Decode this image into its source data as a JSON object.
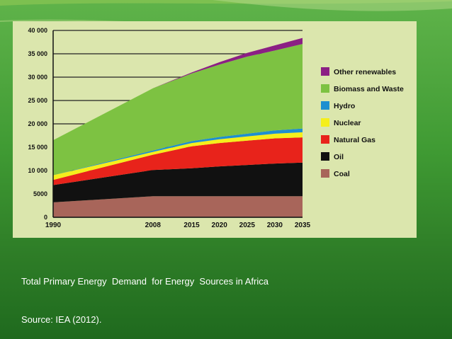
{
  "caption": {
    "line1": "Total Primary Energy  Demand  for Energy  Sources in Africa",
    "line2": "Source: IEA (2012)."
  },
  "colors": {
    "background_green": "#3f9a33",
    "panel": "#dbe6ad"
  },
  "chart_data": {
    "type": "area",
    "stacked": true,
    "title": "",
    "xlabel": "",
    "ylabel": "",
    "x": [
      1990,
      2008,
      2015,
      2020,
      2025,
      2030,
      2035
    ],
    "x_tick_labels": [
      "1990",
      "2008",
      "2015",
      "2020",
      "2025",
      "2030",
      "2035"
    ],
    "ylim": [
      0,
      40000
    ],
    "y_ticks": [
      0,
      5000,
      10000,
      15000,
      20000,
      25000,
      30000,
      35000,
      40000
    ],
    "y_tick_labels": [
      "0",
      "5000",
      "10 000",
      "15 000",
      "20 000",
      "25 000",
      "30 000",
      "35 000",
      "40 000"
    ],
    "grid": true,
    "legend_position": "right",
    "series": [
      {
        "name": "Coal",
        "color": "#a8655a",
        "values": [
          3200,
          4500,
          4500,
          4500,
          4500,
          4500,
          4500
        ]
      },
      {
        "name": "Oil",
        "color": "#111111",
        "values": [
          3700,
          5600,
          6000,
          6400,
          6700,
          7000,
          7200
        ]
      },
      {
        "name": "Natural Gas",
        "color": "#e8231b",
        "values": [
          1100,
          3300,
          4700,
          5000,
          5200,
          5400,
          5400
        ]
      },
      {
        "name": "Nuclear",
        "color": "#f5ef1c",
        "values": [
          1000,
          600,
          700,
          800,
          900,
          1000,
          1100
        ]
      },
      {
        "name": "Hydro",
        "color": "#1e8fd0",
        "values": [
          0,
          300,
          400,
          500,
          600,
          700,
          800
        ]
      },
      {
        "name": "Biomass and Waste",
        "color": "#7dc242",
        "values": [
          7500,
          13300,
          14500,
          15500,
          16500,
          17100,
          18100
        ]
      },
      {
        "name": "Other renewables",
        "color": "#8b1f84",
        "values": [
          0,
          0,
          200,
          500,
          800,
          1100,
          1300
        ]
      }
    ],
    "legend_order": [
      "Other renewables",
      "Biomass and Waste",
      "Hydro",
      "Nuclear",
      "Natural Gas",
      "Oil",
      "Coal"
    ]
  }
}
